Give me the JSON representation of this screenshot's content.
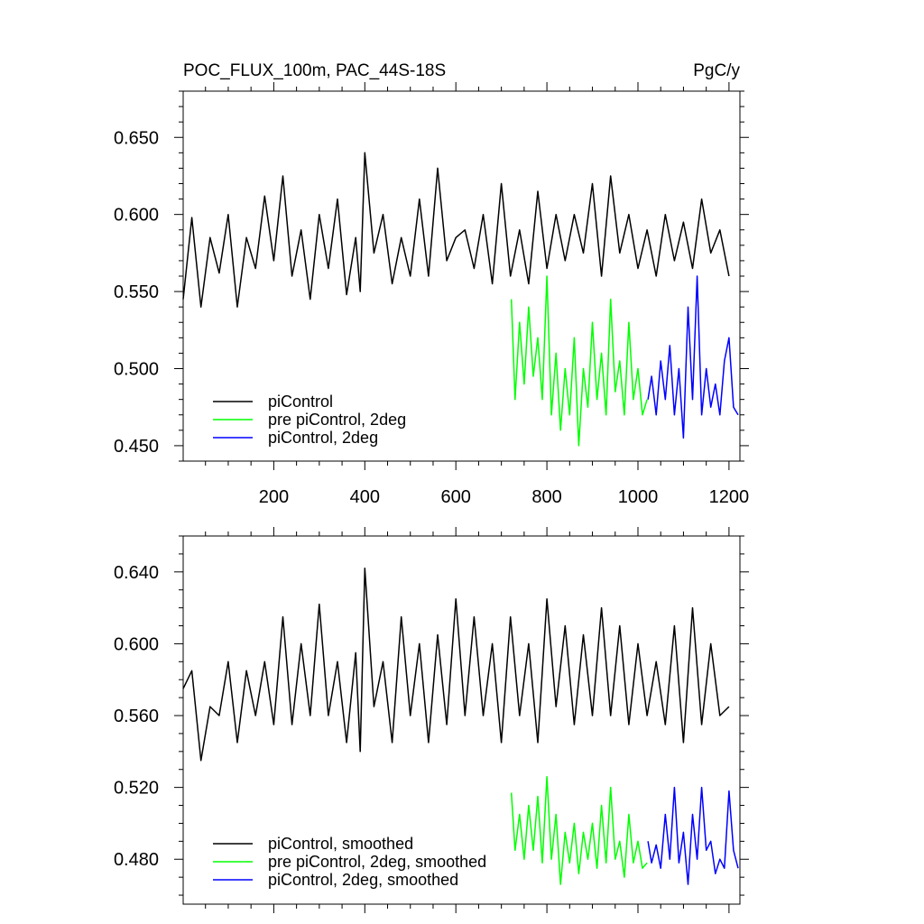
{
  "chart_data": [
    {
      "type": "line",
      "title": "POC_FLUX_100m, PAC_44S-18S",
      "units_label": "PgC/y",
      "xlabel": "",
      "ylabel": "",
      "xlim": [
        1,
        1224
      ],
      "ylim": [
        0.44,
        0.68
      ],
      "x_ticks": [
        200,
        400,
        600,
        800,
        1000,
        1200
      ],
      "y_ticks": [
        0.45,
        0.5,
        0.55,
        0.6,
        0.65
      ],
      "y_tick_labels": [
        "0.450",
        "0.500",
        "0.550",
        "0.600",
        "0.650"
      ],
      "grid": false,
      "legend_position": "bottom-left",
      "series": [
        {
          "name": "piControl",
          "color": "#000000",
          "x": [
            1,
            20,
            40,
            60,
            80,
            100,
            120,
            140,
            160,
            180,
            200,
            220,
            240,
            260,
            280,
            300,
            320,
            340,
            360,
            380,
            390,
            400,
            420,
            440,
            460,
            480,
            500,
            520,
            540,
            560,
            580,
            600,
            620,
            640,
            660,
            680,
            700,
            720,
            740,
            760,
            780,
            800,
            820,
            840,
            860,
            880,
            900,
            920,
            940,
            960,
            980,
            1000,
            1020,
            1040,
            1060,
            1080,
            1100,
            1120,
            1140,
            1160,
            1180,
            1200
          ],
          "values": [
            0.545,
            0.598,
            0.54,
            0.585,
            0.562,
            0.6,
            0.54,
            0.585,
            0.565,
            0.612,
            0.57,
            0.625,
            0.56,
            0.59,
            0.545,
            0.6,
            0.565,
            0.61,
            0.548,
            0.585,
            0.55,
            0.64,
            0.575,
            0.6,
            0.555,
            0.585,
            0.56,
            0.61,
            0.56,
            0.63,
            0.57,
            0.585,
            0.59,
            0.565,
            0.6,
            0.555,
            0.62,
            0.56,
            0.59,
            0.555,
            0.615,
            0.565,
            0.6,
            0.57,
            0.6,
            0.575,
            0.62,
            0.56,
            0.625,
            0.575,
            0.6,
            0.565,
            0.59,
            0.56,
            0.6,
            0.57,
            0.595,
            0.565,
            0.61,
            0.575,
            0.59,
            0.56
          ]
        },
        {
          "name": "pre piControl, 2deg",
          "color": "#00ff00",
          "x": [
            722,
            730,
            740,
            750,
            760,
            770,
            780,
            790,
            800,
            810,
            820,
            830,
            840,
            850,
            860,
            870,
            880,
            890,
            900,
            910,
            920,
            930,
            940,
            950,
            960,
            970,
            980,
            990,
            1000,
            1010,
            1020
          ],
          "values": [
            0.545,
            0.48,
            0.53,
            0.49,
            0.54,
            0.495,
            0.52,
            0.48,
            0.56,
            0.47,
            0.51,
            0.46,
            0.5,
            0.47,
            0.52,
            0.45,
            0.5,
            0.475,
            0.53,
            0.48,
            0.51,
            0.47,
            0.545,
            0.485,
            0.505,
            0.47,
            0.53,
            0.48,
            0.5,
            0.47,
            0.48
          ]
        },
        {
          "name": "piControl, 2deg",
          "color": "#0000ff",
          "x": [
            1022,
            1030,
            1040,
            1050,
            1060,
            1070,
            1080,
            1090,
            1100,
            1110,
            1120,
            1130,
            1140,
            1150,
            1160,
            1170,
            1180,
            1190,
            1200,
            1210,
            1220
          ],
          "values": [
            0.48,
            0.495,
            0.47,
            0.505,
            0.48,
            0.515,
            0.47,
            0.5,
            0.455,
            0.54,
            0.48,
            0.56,
            0.47,
            0.5,
            0.475,
            0.49,
            0.47,
            0.505,
            0.52,
            0.475,
            0.47
          ]
        }
      ]
    },
    {
      "type": "line",
      "title": "",
      "xlabel": "",
      "ylabel": "",
      "xlim": [
        1,
        1224
      ],
      "ylim": [
        0.455,
        0.66
      ],
      "x_ticks": [
        200,
        400,
        600,
        800,
        1000,
        1200
      ],
      "y_ticks": [
        0.48,
        0.52,
        0.56,
        0.6,
        0.64
      ],
      "y_tick_labels": [
        "0.480",
        "0.520",
        "0.560",
        "0.600",
        "0.640"
      ],
      "grid": false,
      "legend_position": "bottom-left",
      "series": [
        {
          "name": "piControl, smoothed",
          "color": "#000000",
          "x": [
            1,
            20,
            40,
            60,
            80,
            100,
            120,
            140,
            160,
            180,
            200,
            220,
            240,
            260,
            280,
            300,
            320,
            340,
            360,
            380,
            390,
            400,
            420,
            440,
            460,
            480,
            500,
            520,
            540,
            560,
            580,
            600,
            620,
            640,
            660,
            680,
            700,
            720,
            740,
            760,
            780,
            800,
            820,
            840,
            860,
            880,
            900,
            920,
            940,
            960,
            980,
            1000,
            1020,
            1040,
            1060,
            1080,
            1100,
            1120,
            1140,
            1160,
            1180,
            1200
          ],
          "values": [
            0.575,
            0.585,
            0.535,
            0.565,
            0.56,
            0.59,
            0.545,
            0.585,
            0.56,
            0.59,
            0.555,
            0.615,
            0.555,
            0.6,
            0.56,
            0.622,
            0.56,
            0.59,
            0.545,
            0.595,
            0.54,
            0.642,
            0.565,
            0.59,
            0.545,
            0.615,
            0.56,
            0.6,
            0.545,
            0.605,
            0.555,
            0.625,
            0.56,
            0.615,
            0.56,
            0.6,
            0.545,
            0.615,
            0.56,
            0.6,
            0.545,
            0.625,
            0.565,
            0.61,
            0.555,
            0.605,
            0.56,
            0.62,
            0.56,
            0.61,
            0.555,
            0.6,
            0.56,
            0.59,
            0.555,
            0.61,
            0.545,
            0.62,
            0.555,
            0.6,
            0.56,
            0.565
          ]
        },
        {
          "name": "pre piControl, 2deg, smoothed",
          "color": "#00ff00",
          "x": [
            722,
            730,
            740,
            750,
            760,
            770,
            780,
            790,
            800,
            810,
            820,
            830,
            840,
            850,
            860,
            870,
            880,
            890,
            900,
            910,
            920,
            930,
            940,
            950,
            960,
            970,
            980,
            990,
            1000,
            1010,
            1020
          ],
          "values": [
            0.517,
            0.485,
            0.505,
            0.48,
            0.51,
            0.485,
            0.515,
            0.478,
            0.526,
            0.48,
            0.505,
            0.466,
            0.495,
            0.478,
            0.5,
            0.472,
            0.495,
            0.48,
            0.5,
            0.475,
            0.51,
            0.478,
            0.52,
            0.48,
            0.49,
            0.47,
            0.505,
            0.478,
            0.49,
            0.475,
            0.478
          ]
        },
        {
          "name": "piControl, 2deg, smoothed",
          "color": "#0000ff",
          "x": [
            1022,
            1030,
            1040,
            1050,
            1060,
            1070,
            1080,
            1090,
            1100,
            1110,
            1120,
            1130,
            1140,
            1150,
            1160,
            1170,
            1180,
            1190,
            1200,
            1210,
            1220
          ],
          "values": [
            0.49,
            0.478,
            0.488,
            0.475,
            0.505,
            0.48,
            0.52,
            0.478,
            0.495,
            0.466,
            0.505,
            0.48,
            0.52,
            0.485,
            0.49,
            0.472,
            0.48,
            0.475,
            0.518,
            0.485,
            0.475
          ]
        }
      ]
    }
  ]
}
